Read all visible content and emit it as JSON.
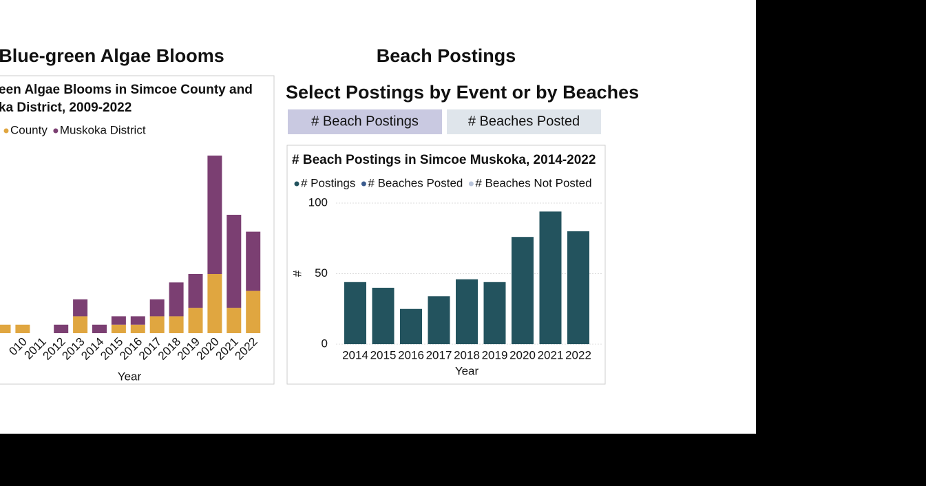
{
  "headings": [
    "Blue-green Algae Blooms",
    "Beach Postings"
  ],
  "selector": {
    "title": "Select Postings by Event or by Beaches",
    "buttons": [
      "# Beach Postings",
      "# Beaches Posted"
    ]
  },
  "chart_data": [
    {
      "type": "bar",
      "stacked": true,
      "title": [
        "een Algae Blooms in Simcoe County and",
        "ka District, 2009-2022"
      ],
      "xlabel": "Year",
      "categories": [
        null,
        "010",
        "2011",
        "2012",
        "2013",
        "2014",
        "2015",
        "2016",
        "2017",
        "2018",
        "2019",
        "2020",
        "2021",
        "2022"
      ],
      "series": [
        {
          "name": "County",
          "color": "#e0a640",
          "values": [
            1,
            1,
            0,
            0,
            2,
            0,
            1,
            1,
            2,
            2,
            3,
            7,
            3,
            5
          ]
        },
        {
          "name": "Muskoka District",
          "color": "#7b3f72",
          "values": [
            0,
            0,
            0,
            1,
            2,
            1,
            1,
            1,
            2,
            4,
            4,
            14,
            11,
            7
          ]
        }
      ],
      "ylim": [
        0,
        21
      ]
    },
    {
      "type": "bar",
      "title": [
        "# Beach Postings in Simcoe Muskoka, 2014-2022"
      ],
      "xlabel": "Year",
      "ylabel": "#",
      "legend": [
        {
          "name": "# Postings",
          "color": "#23535e"
        },
        {
          "name": "# Beaches Posted",
          "color": "#3b5b8e"
        },
        {
          "name": "# Beaches Not Posted",
          "color": "#b9c4da"
        }
      ],
      "categories": [
        "2014",
        "2015",
        "2016",
        "2017",
        "2018",
        "2019",
        "2020",
        "2021",
        "2022"
      ],
      "series": [
        {
          "name": "# Postings",
          "color": "#23535e",
          "values": [
            44,
            40,
            25,
            34,
            46,
            44,
            76,
            94,
            80
          ]
        }
      ],
      "ylim": [
        0,
        100
      ],
      "yticks": [
        0,
        50,
        100
      ],
      "grid": true
    }
  ]
}
